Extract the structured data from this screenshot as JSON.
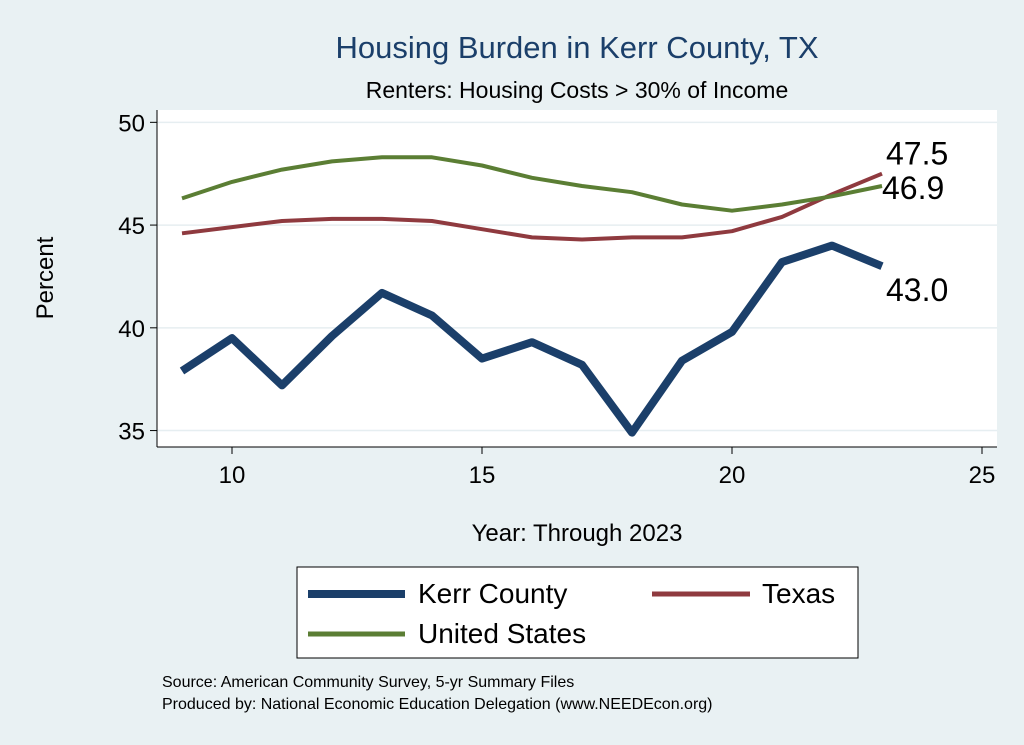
{
  "chart_data": {
    "type": "line",
    "title": "Housing Burden in Kerr County, TX",
    "subtitle": "Renters: Housing Costs > 30% of Income",
    "xlabel": "Year: Through 2023",
    "ylabel": "Percent",
    "xlim": [
      8.5,
      25.3
    ],
    "ylim": [
      34.2,
      50.6
    ],
    "xticks": [
      10,
      15,
      20,
      25
    ],
    "yticks": [
      35,
      40,
      45,
      50
    ],
    "grid": true,
    "legend_position": "bottom",
    "series": [
      {
        "name": "Kerr County",
        "color": "#1b3f6a",
        "x": [
          9,
          10,
          11,
          12,
          13,
          14,
          15,
          16,
          17,
          18,
          19,
          20,
          21,
          22,
          23
        ],
        "values": [
          37.9,
          39.5,
          37.2,
          39.6,
          41.7,
          40.6,
          38.5,
          39.3,
          38.2,
          34.9,
          38.4,
          39.8,
          43.2,
          44.0,
          43.0
        ],
        "end_label": "43.0"
      },
      {
        "name": "Texas",
        "color": "#8f3a3f",
        "x": [
          9,
          10,
          11,
          12,
          13,
          14,
          15,
          16,
          17,
          18,
          19,
          20,
          21,
          22,
          23
        ],
        "values": [
          44.6,
          44.9,
          45.2,
          45.3,
          45.3,
          45.2,
          44.8,
          44.4,
          44.3,
          44.4,
          44.4,
          44.7,
          45.4,
          46.5,
          47.5
        ],
        "end_label": "47.5"
      },
      {
        "name": "United States",
        "color": "#5b7e34",
        "x": [
          9,
          10,
          11,
          12,
          13,
          14,
          15,
          16,
          17,
          18,
          19,
          20,
          21,
          22,
          23
        ],
        "values": [
          46.3,
          47.1,
          47.7,
          48.1,
          48.3,
          48.3,
          47.9,
          47.3,
          46.9,
          46.6,
          46.0,
          45.7,
          46.0,
          46.4,
          46.9
        ],
        "end_label": "46.9"
      }
    ]
  },
  "source": {
    "line1": "Source: American Community Survey, 5-yr Summary Files",
    "line2": "Produced by: National Economic Education Delegation (www.NEEDEcon.org)"
  }
}
